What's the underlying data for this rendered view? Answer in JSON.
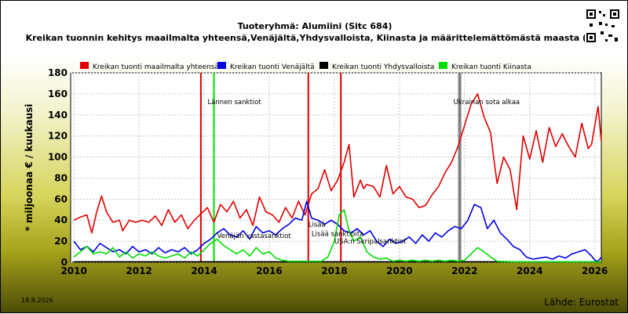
{
  "header": {
    "title": "Tuoteryhmä: Alumiini (Sitc 684)",
    "subtitle": "Kreikan tuonnin kehitys maailmalta yhteensä,Venäjältä,Yhdysvalloista, Kiinasta ja määrittelemättömästä maasta (QZ)"
  },
  "footer": {
    "date": "18.8.2026",
    "source": "Lähde: Eurostat"
  },
  "colors": {
    "frame_gradient_bottom": "#4b4a06",
    "plot_background": "#ffffff"
  },
  "chart_data": {
    "type": "line",
    "ylabel": "* miljoonaa € / kuukausi",
    "ylim": [
      0,
      180
    ],
    "yticks": [
      0,
      20,
      40,
      60,
      80,
      100,
      120,
      140,
      160,
      180
    ],
    "xlim": [
      2009.9,
      2026.2
    ],
    "xticks": [
      2010,
      2012,
      2014,
      2016,
      2018,
      2020,
      2022,
      2024,
      2026
    ],
    "grid": true,
    "legend_position": "top",
    "series": [
      {
        "name": "Kreikan tuonti maailmalta yhteensä",
        "color": "#e00000",
        "points": [
          [
            2010.0,
            40
          ],
          [
            2010.2,
            43
          ],
          [
            2010.4,
            45
          ],
          [
            2010.55,
            28
          ],
          [
            2010.7,
            48
          ],
          [
            2010.85,
            63
          ],
          [
            2011.0,
            48
          ],
          [
            2011.2,
            38
          ],
          [
            2011.4,
            40
          ],
          [
            2011.5,
            30
          ],
          [
            2011.7,
            40
          ],
          [
            2011.9,
            38
          ],
          [
            2012.1,
            40
          ],
          [
            2012.3,
            38
          ],
          [
            2012.5,
            44
          ],
          [
            2012.7,
            35
          ],
          [
            2012.9,
            50
          ],
          [
            2013.1,
            38
          ],
          [
            2013.3,
            45
          ],
          [
            2013.5,
            32
          ],
          [
            2013.7,
            40
          ],
          [
            2013.9,
            46
          ],
          [
            2014.1,
            52
          ],
          [
            2014.3,
            38
          ],
          [
            2014.5,
            55
          ],
          [
            2014.7,
            48
          ],
          [
            2014.9,
            58
          ],
          [
            2015.1,
            42
          ],
          [
            2015.3,
            50
          ],
          [
            2015.5,
            35
          ],
          [
            2015.7,
            62
          ],
          [
            2015.9,
            48
          ],
          [
            2016.1,
            45
          ],
          [
            2016.3,
            38
          ],
          [
            2016.5,
            52
          ],
          [
            2016.7,
            42
          ],
          [
            2016.9,
            58
          ],
          [
            2017.1,
            45
          ],
          [
            2017.3,
            65
          ],
          [
            2017.5,
            70
          ],
          [
            2017.7,
            88
          ],
          [
            2017.9,
            68
          ],
          [
            2018.1,
            78
          ],
          [
            2018.3,
            95
          ],
          [
            2018.45,
            112
          ],
          [
            2018.6,
            62
          ],
          [
            2018.8,
            78
          ],
          [
            2018.9,
            70
          ],
          [
            2019.0,
            74
          ],
          [
            2019.2,
            72
          ],
          [
            2019.4,
            62
          ],
          [
            2019.6,
            92
          ],
          [
            2019.8,
            65
          ],
          [
            2020.0,
            72
          ],
          [
            2020.2,
            62
          ],
          [
            2020.4,
            60
          ],
          [
            2020.6,
            52
          ],
          [
            2020.8,
            54
          ],
          [
            2021.0,
            64
          ],
          [
            2021.2,
            72
          ],
          [
            2021.4,
            85
          ],
          [
            2021.6,
            95
          ],
          [
            2021.8,
            110
          ],
          [
            2022.0,
            130
          ],
          [
            2022.2,
            150
          ],
          [
            2022.4,
            160
          ],
          [
            2022.6,
            138
          ],
          [
            2022.8,
            123
          ],
          [
            2022.9,
            98
          ],
          [
            2023.0,
            75
          ],
          [
            2023.2,
            100
          ],
          [
            2023.4,
            88
          ],
          [
            2023.6,
            50
          ],
          [
            2023.8,
            120
          ],
          [
            2024.0,
            98
          ],
          [
            2024.2,
            125
          ],
          [
            2024.4,
            95
          ],
          [
            2024.6,
            128
          ],
          [
            2024.8,
            110
          ],
          [
            2025.0,
            122
          ],
          [
            2025.2,
            110
          ],
          [
            2025.4,
            100
          ],
          [
            2025.6,
            132
          ],
          [
            2025.8,
            108
          ],
          [
            2025.9,
            112
          ],
          [
            2026.0,
            130
          ],
          [
            2026.1,
            148
          ],
          [
            2026.2,
            115
          ]
        ]
      },
      {
        "name": "Kreikan tuonti Venäjältä",
        "color": "#0000e0",
        "points": [
          [
            2010.0,
            20
          ],
          [
            2010.2,
            12
          ],
          [
            2010.4,
            15
          ],
          [
            2010.6,
            10
          ],
          [
            2010.8,
            18
          ],
          [
            2011.0,
            14
          ],
          [
            2011.2,
            10
          ],
          [
            2011.4,
            12
          ],
          [
            2011.6,
            8
          ],
          [
            2011.8,
            15
          ],
          [
            2012.0,
            10
          ],
          [
            2012.2,
            12
          ],
          [
            2012.4,
            8
          ],
          [
            2012.6,
            14
          ],
          [
            2012.8,
            9
          ],
          [
            2013.0,
            12
          ],
          [
            2013.2,
            10
          ],
          [
            2013.4,
            14
          ],
          [
            2013.6,
            8
          ],
          [
            2013.8,
            12
          ],
          [
            2014.0,
            18
          ],
          [
            2014.2,
            22
          ],
          [
            2014.4,
            28
          ],
          [
            2014.6,
            32
          ],
          [
            2014.8,
            26
          ],
          [
            2015.0,
            24
          ],
          [
            2015.2,
            30
          ],
          [
            2015.4,
            22
          ],
          [
            2015.6,
            34
          ],
          [
            2015.8,
            28
          ],
          [
            2016.0,
            30
          ],
          [
            2016.2,
            26
          ],
          [
            2016.4,
            32
          ],
          [
            2016.6,
            36
          ],
          [
            2016.8,
            42
          ],
          [
            2017.0,
            40
          ],
          [
            2017.15,
            58
          ],
          [
            2017.3,
            42
          ],
          [
            2017.5,
            40
          ],
          [
            2017.7,
            36
          ],
          [
            2017.9,
            40
          ],
          [
            2018.1,
            36
          ],
          [
            2018.3,
            30
          ],
          [
            2018.5,
            28
          ],
          [
            2018.7,
            32
          ],
          [
            2018.9,
            26
          ],
          [
            2019.1,
            30
          ],
          [
            2019.3,
            20
          ],
          [
            2019.5,
            15
          ],
          [
            2019.7,
            22
          ],
          [
            2019.9,
            18
          ],
          [
            2020.1,
            20
          ],
          [
            2020.3,
            24
          ],
          [
            2020.5,
            18
          ],
          [
            2020.7,
            26
          ],
          [
            2020.9,
            20
          ],
          [
            2021.1,
            28
          ],
          [
            2021.3,
            24
          ],
          [
            2021.5,
            30
          ],
          [
            2021.7,
            34
          ],
          [
            2021.9,
            32
          ],
          [
            2022.1,
            40
          ],
          [
            2022.3,
            55
          ],
          [
            2022.5,
            52
          ],
          [
            2022.7,
            32
          ],
          [
            2022.9,
            40
          ],
          [
            2023.1,
            28
          ],
          [
            2023.3,
            22
          ],
          [
            2023.5,
            15
          ],
          [
            2023.7,
            12
          ],
          [
            2023.9,
            5
          ],
          [
            2024.1,
            3
          ],
          [
            2024.3,
            4
          ],
          [
            2024.5,
            5
          ],
          [
            2024.7,
            3
          ],
          [
            2024.9,
            6
          ],
          [
            2025.1,
            4
          ],
          [
            2025.3,
            8
          ],
          [
            2025.5,
            10
          ],
          [
            2025.7,
            12
          ],
          [
            2025.9,
            6
          ],
          [
            2026.0,
            2
          ],
          [
            2026.1,
            1
          ],
          [
            2026.2,
            5
          ]
        ]
      },
      {
        "name": "Kreikan tuonti Yhdysvalloista",
        "color": "#000000",
        "points": [
          [
            2010.0,
            0.5
          ],
          [
            2011.0,
            0.5
          ],
          [
            2012.0,
            0.5
          ],
          [
            2013.0,
            0.5
          ],
          [
            2014.0,
            0.5
          ],
          [
            2015.0,
            0.5
          ],
          [
            2016.0,
            0.5
          ],
          [
            2017.0,
            0.5
          ],
          [
            2018.0,
            0.5
          ],
          [
            2019.0,
            0.5
          ],
          [
            2020.0,
            0.5
          ],
          [
            2021.0,
            0.5
          ],
          [
            2022.0,
            0.5
          ],
          [
            2023.0,
            0.5
          ],
          [
            2024.0,
            0.5
          ],
          [
            2025.0,
            0.5
          ],
          [
            2026.2,
            0.5
          ]
        ]
      },
      {
        "name": "Kreikan tuonti Kiinasta",
        "color": "#00dd00",
        "points": [
          [
            2010.0,
            5
          ],
          [
            2010.2,
            10
          ],
          [
            2010.4,
            15
          ],
          [
            2010.6,
            8
          ],
          [
            2010.8,
            10
          ],
          [
            2011.0,
            8
          ],
          [
            2011.2,
            14
          ],
          [
            2011.4,
            5
          ],
          [
            2011.6,
            10
          ],
          [
            2011.8,
            4
          ],
          [
            2012.0,
            8
          ],
          [
            2012.2,
            6
          ],
          [
            2012.4,
            10
          ],
          [
            2012.6,
            6
          ],
          [
            2012.8,
            4
          ],
          [
            2013.0,
            6
          ],
          [
            2013.2,
            8
          ],
          [
            2013.4,
            4
          ],
          [
            2013.6,
            10
          ],
          [
            2013.8,
            6
          ],
          [
            2014.0,
            12
          ],
          [
            2014.2,
            18
          ],
          [
            2014.4,
            22
          ],
          [
            2014.6,
            16
          ],
          [
            2014.8,
            12
          ],
          [
            2015.0,
            8
          ],
          [
            2015.2,
            12
          ],
          [
            2015.4,
            6
          ],
          [
            2015.6,
            14
          ],
          [
            2015.8,
            8
          ],
          [
            2016.0,
            10
          ],
          [
            2016.2,
            4
          ],
          [
            2016.4,
            2
          ],
          [
            2016.6,
            1
          ],
          [
            2016.8,
            1
          ],
          [
            2017.0,
            1
          ],
          [
            2017.2,
            1
          ],
          [
            2017.4,
            1
          ],
          [
            2017.6,
            1
          ],
          [
            2017.8,
            5
          ],
          [
            2018.0,
            20
          ],
          [
            2018.15,
            45
          ],
          [
            2018.3,
            50
          ],
          [
            2018.45,
            30
          ],
          [
            2018.6,
            20
          ],
          [
            2018.8,
            24
          ],
          [
            2019.0,
            10
          ],
          [
            2019.2,
            5
          ],
          [
            2019.4,
            3
          ],
          [
            2019.6,
            4
          ],
          [
            2019.8,
            1
          ],
          [
            2020.0,
            2
          ],
          [
            2020.2,
            1
          ],
          [
            2020.4,
            2
          ],
          [
            2020.6,
            1
          ],
          [
            2020.8,
            2
          ],
          [
            2021.0,
            1
          ],
          [
            2021.2,
            2
          ],
          [
            2021.4,
            1
          ],
          [
            2021.6,
            2
          ],
          [
            2021.8,
            1
          ],
          [
            2022.0,
            2
          ],
          [
            2022.2,
            8
          ],
          [
            2022.4,
            14
          ],
          [
            2022.6,
            10
          ],
          [
            2022.8,
            5
          ],
          [
            2023.0,
            1
          ],
          [
            2023.5,
            0.5
          ],
          [
            2024.0,
            0.5
          ],
          [
            2025.0,
            0.5
          ],
          [
            2026.2,
            0.5
          ]
        ]
      }
    ],
    "event_lines": [
      {
        "x": 2013.9,
        "color": "#e00000",
        "label": ""
      },
      {
        "x": 2014.3,
        "color": "#00dd00",
        "label": "Lännen sanktiot"
      },
      {
        "x": 2017.2,
        "color": "#e00000",
        "label": ""
      },
      {
        "x": 2018.2,
        "color": "#e00000",
        "label": ""
      },
      {
        "x": 2021.85,
        "color": "#808080",
        "label": "Ukrainan sota alkaa"
      }
    ],
    "annotations": [
      {
        "text": "Venäjän vastasanktiot",
        "x": 2014.4,
        "y": 23
      },
      {
        "text": "Lisää",
        "x": 2017.2,
        "y": 34
      },
      {
        "text": "Lisää sanktioita",
        "x": 2017.3,
        "y": 25
      },
      {
        "text": "USA:n Skripalsanktiot",
        "x": 2018.0,
        "y": 18
      }
    ]
  }
}
